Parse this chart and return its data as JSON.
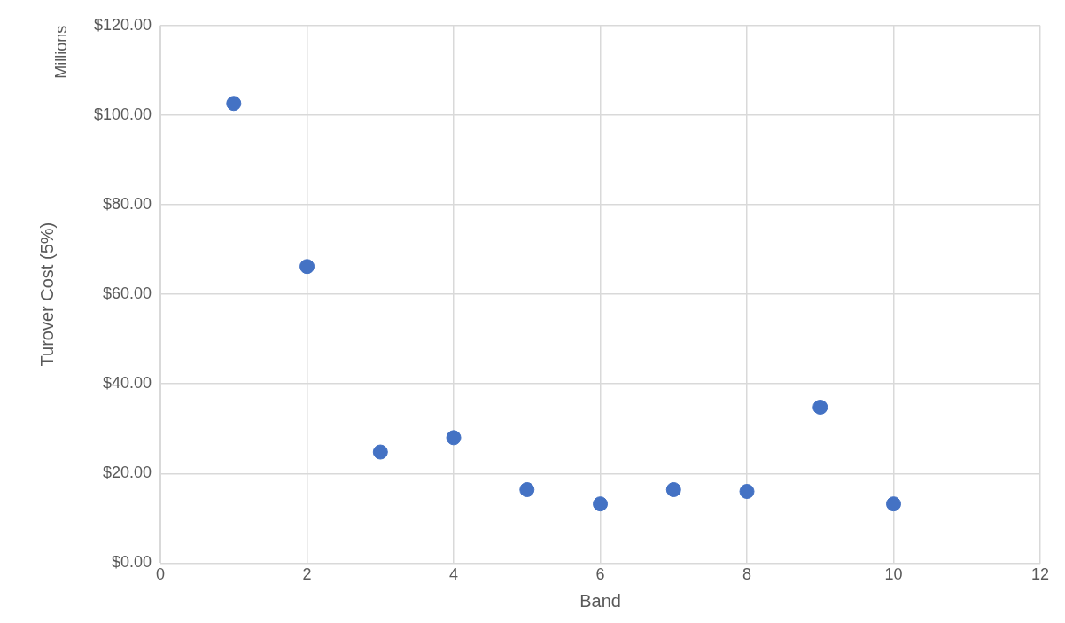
{
  "chart_data": {
    "type": "scatter",
    "xlabel": "Band",
    "ylabel": "Turover Cost (5%)",
    "annotations": [
      "Millions"
    ],
    "x": [
      1,
      2,
      3,
      4,
      5,
      6,
      7,
      8,
      9,
      10
    ],
    "series": [
      {
        "color": "#4472c4",
        "values": [
          102.6,
          66.2,
          24.8,
          28.0,
          16.4,
          13.2,
          16.4,
          16.0,
          34.8,
          13.2
        ]
      }
    ],
    "xlim": [
      0,
      12
    ],
    "xticks": [
      0,
      2,
      4,
      6,
      8,
      10,
      12
    ],
    "ylim": [
      0,
      120
    ],
    "yticks": [
      {
        "value": 0,
        "label": "$0.00"
      },
      {
        "value": 20,
        "label": "$20.00"
      },
      {
        "value": 40,
        "label": "$40.00"
      },
      {
        "value": 60,
        "label": "$60.00"
      },
      {
        "value": 80,
        "label": "$80.00"
      },
      {
        "value": 100,
        "label": "$100.00"
      },
      {
        "value": 120,
        "label": "$120.00"
      }
    ],
    "grid": true,
    "legend": false,
    "marker": "circle"
  }
}
